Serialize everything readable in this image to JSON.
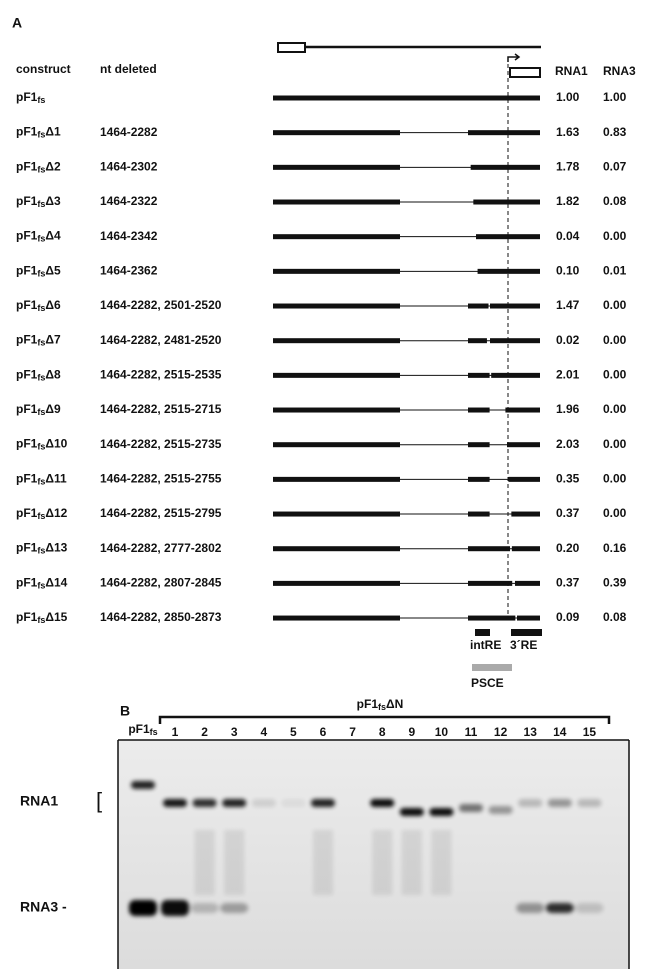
{
  "panel_a": {
    "label": "A",
    "headers": {
      "construct": "construct",
      "deleted": "nt deleted",
      "rna1": "RNA1",
      "rna3": "RNA3"
    },
    "rows": [
      {
        "base": "pF1",
        "sub": "fs",
        "rna1": "1.00",
        "rna3": "1.00"
      },
      {
        "base": "pF1",
        "sub": "fs",
        "suffix": "Δ1",
        "deleted": "1464-2282",
        "rna1": "1.63",
        "rna3": "0.83"
      },
      {
        "base": "pF1",
        "sub": "fs",
        "suffix": "Δ2",
        "deleted": "1464-2302",
        "rna1": "1.78",
        "rna3": "0.07"
      },
      {
        "base": "pF1",
        "sub": "fs",
        "suffix": "Δ3",
        "deleted": "1464-2322",
        "rna1": "1.82",
        "rna3": "0.08"
      },
      {
        "base": "pF1",
        "sub": "fs",
        "suffix": "Δ4",
        "deleted": "1464-2342",
        "rna1": "0.04",
        "rna3": "0.00"
      },
      {
        "base": "pF1",
        "sub": "fs",
        "suffix": "Δ5",
        "deleted": "1464-2362",
        "rna1": "0.10",
        "rna3": "0.01"
      },
      {
        "base": "pF1",
        "sub": "fs",
        "suffix": "Δ6",
        "deleted": "1464-2282, 2501-2520",
        "rna1": "1.47",
        "rna3": "0.00"
      },
      {
        "base": "pF1",
        "sub": "fs",
        "suffix": "Δ7",
        "deleted": "1464-2282, 2481-2520",
        "rna1": "0.02",
        "rna3": "0.00"
      },
      {
        "base": "pF1",
        "sub": "fs",
        "suffix": "Δ8",
        "deleted": "1464-2282, 2515-2535",
        "rna1": "2.01",
        "rna3": "0.00"
      },
      {
        "base": "pF1",
        "sub": "fs",
        "suffix": "Δ9",
        "deleted": "1464-2282, 2515-2715",
        "rna1": "1.96",
        "rna3": "0.00"
      },
      {
        "base": "pF1",
        "sub": "fs",
        "suffix": "Δ10",
        "deleted": "1464-2282, 2515-2735",
        "rna1": "2.03",
        "rna3": "0.00"
      },
      {
        "base": "pF1",
        "sub": "fs",
        "suffix": "Δ11",
        "deleted": "1464-2282, 2515-2755",
        "rna1": "0.35",
        "rna3": "0.00"
      },
      {
        "base": "pF1",
        "sub": "fs",
        "suffix": "Δ12",
        "deleted": "1464-2282, 2515-2795",
        "rna1": "0.37",
        "rna3": "0.00"
      },
      {
        "base": "pF1",
        "sub": "fs",
        "suffix": "Δ13",
        "deleted": "1464-2282, 2777-2802",
        "rna1": "0.20",
        "rna3": "0.16"
      },
      {
        "base": "pF1",
        "sub": "fs",
        "suffix": "Δ14",
        "deleted": "1464-2282, 2807-2845",
        "rna1": "0.37",
        "rna3": "0.39"
      },
      {
        "base": "pF1",
        "sub": "fs",
        "suffix": "Δ15",
        "deleted": "1464-2282, 2850-2873",
        "rna1": "0.09",
        "rna3": "0.08"
      }
    ],
    "annotations": {
      "int_re": "intRE",
      "re3": "3´RE",
      "psce": "PSCE"
    }
  },
  "panel_b": {
    "label": "B",
    "control": {
      "base": "pF1",
      "sub": "fs"
    },
    "group": {
      "base": "pF1",
      "sub": "fs",
      "suffix": "ΔN"
    },
    "lanes": [
      "1",
      "2",
      "3",
      "4",
      "5",
      "6",
      "7",
      "8",
      "9",
      "10",
      "11",
      "12",
      "13",
      "14",
      "15"
    ],
    "bands": {
      "rna1": "RNA1",
      "rna3": "RNA3 -"
    }
  }
}
